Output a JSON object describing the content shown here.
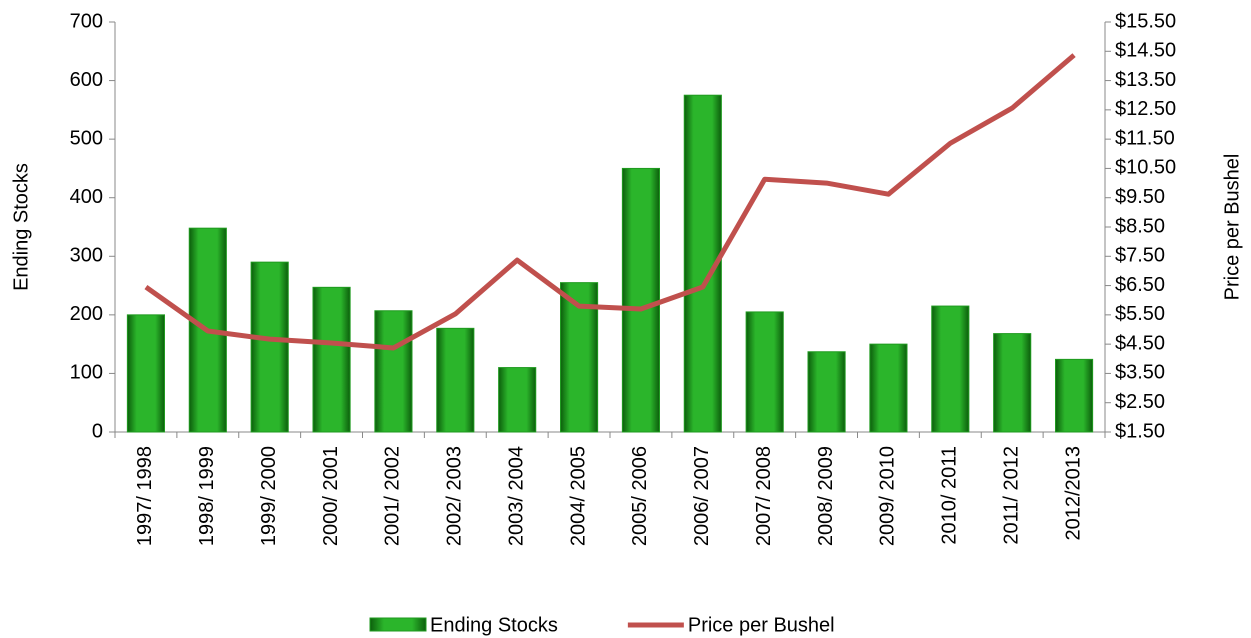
{
  "chart_data": {
    "type": "bar",
    "categories": [
      "1997/ 1998",
      "1998/ 1999",
      "1999/ 2000",
      "2000/ 2001",
      "2001/ 2002",
      "2002/ 2003",
      "2003/ 2004",
      "2004/ 2005",
      "2005/ 2006",
      "2006/ 2007",
      "2007/ 2008",
      "2008/ 2009",
      "2009/ 2010",
      "2010/ 2011",
      "2011/ 2012",
      "2012/2013"
    ],
    "series": [
      {
        "name": "Ending Stocks",
        "type": "bar",
        "color": "#1f9a1f",
        "values": [
          200,
          348,
          290,
          247,
          207,
          177,
          110,
          255,
          450,
          575,
          205,
          137,
          150,
          215,
          168,
          124
        ]
      },
      {
        "name": "Price per Bushel",
        "type": "line",
        "axis": "y2",
        "color": "#c0504d",
        "values": [
          6.45,
          4.95,
          4.67,
          4.54,
          4.37,
          5.53,
          7.37,
          5.8,
          5.7,
          6.45,
          10.13,
          10.0,
          9.62,
          11.36,
          12.56,
          14.37
        ]
      }
    ],
    "ylabel": "Ending Stocks",
    "y2label": "Price per Bushel",
    "ylim": [
      0,
      700
    ],
    "yticks": [
      0,
      100,
      200,
      300,
      400,
      500,
      600,
      700
    ],
    "y2lim": [
      1.5,
      15.5
    ],
    "y2ticks": [
      {
        "value": 1.5,
        "label": "$1.50"
      },
      {
        "value": 2.5,
        "label": "$2.50"
      },
      {
        "value": 3.5,
        "label": "$3.50"
      },
      {
        "value": 4.5,
        "label": "$4.50"
      },
      {
        "value": 5.5,
        "label": "$5.50"
      },
      {
        "value": 6.5,
        "label": "$6.50"
      },
      {
        "value": 7.5,
        "label": "$7.50"
      },
      {
        "value": 8.5,
        "label": "$8.50"
      },
      {
        "value": 9.5,
        "label": "$9.50"
      },
      {
        "value": 10.5,
        "label": "$10.50"
      },
      {
        "value": 11.5,
        "label": "$11.50"
      },
      {
        "value": 12.5,
        "label": "$12.50"
      },
      {
        "value": 13.5,
        "label": "$13.50"
      },
      {
        "value": 14.5,
        "label": "$14.50"
      },
      {
        "value": 15.5,
        "label": "$15.50"
      }
    ],
    "legend": "bottom"
  }
}
